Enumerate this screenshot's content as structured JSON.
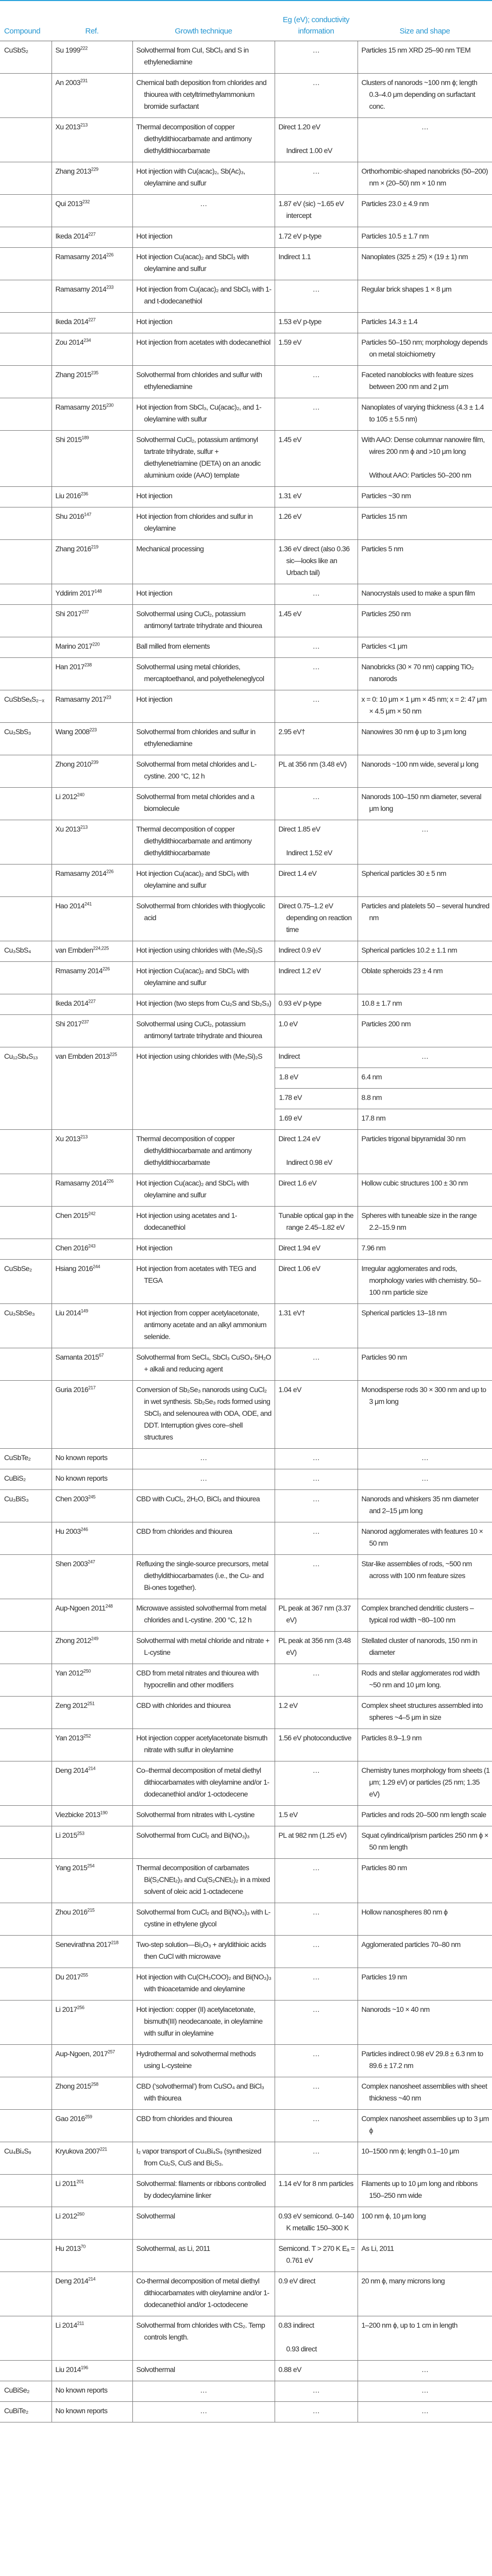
{
  "colors": {
    "header": "#2596d1",
    "rule": "#2aa3dc"
  },
  "table": {
    "headers": [
      "Compound",
      "Ref.",
      "Growth technique",
      "Eg (eV); conductivity information",
      "Size and shape"
    ],
    "rows": [
      {
        "c": "CuSbS₂",
        "r": "Su 1999",
        "s": "222",
        "t": "Solvothermal from CuI, SbCl₃ and S in ethylenediamine",
        "e": "…",
        "z": "Particles 15 nm XRD 25–90 nm TEM"
      },
      {
        "c": "",
        "r": "An 2003",
        "s": "231",
        "t": "Chemical bath deposition from chlorides and thiourea with cetyltrimethylammonium bromide surfactant",
        "e": "…",
        "z": "Clusters of nanorods ~100 nm ϕ; length 0.3–4.0 μm depending on surfactant conc."
      },
      {
        "c": "",
        "r": "Xu 2013",
        "s": "213",
        "t": "Thermal decomposition of copper diethyldithiocarbamate and antimony diethyldithiocarbamate",
        "e": "Direct 1.20 eV\n\nIndirect 1.00 eV",
        "z": "…"
      },
      {
        "c": "",
        "r": "Zhang 2013",
        "s": "229",
        "t": "Hot injection with Cu(acac)₂, Sb(Ac)₃, oleylamine and sulfur",
        "e": "…",
        "z": "Orthorhombic-shaped nanobricks (50–200) nm × (20–50) nm × 10 nm"
      },
      {
        "c": "",
        "r": "Qui 2013",
        "s": "232",
        "t": "…",
        "e": "1.87 eV (sic) ~1.65 eV intercept",
        "z": "Particles 23.0 ± 4.9 nm"
      },
      {
        "c": "",
        "r": "Ikeda 2014",
        "s": "227",
        "t": "Hot injection",
        "e": "1.72 eV p-type",
        "z": "Particles 10.5 ± 1.7 nm"
      },
      {
        "c": "",
        "r": "Ramasamy 2014",
        "s": "226",
        "t": "Hot injection Cu(acac)₂ and SbCl₃ with oleylamine and sulfur",
        "e": "Indirect 1.1",
        "z": "Nanoplates (325 ± 25) × (19 ± 1) nm"
      },
      {
        "c": "",
        "r": "Ramasamy 2014",
        "s": "233",
        "t": "Hot injection from Cu(acac)₂ and SbCl₃ with 1- and t-dodecanethiol",
        "e": "…",
        "z": "Regular brick shapes 1 × 8 μm"
      },
      {
        "c": "",
        "r": "Ikeda 2014",
        "s": "227",
        "t": "Hot injection",
        "e": "1.53 eV p-type",
        "z": "Particles 14.3 ± 1.4"
      },
      {
        "c": "",
        "r": "Zou 2014",
        "s": "234",
        "t": "Hot injection from acetates with dodecanethiol",
        "e": "1.59 eV",
        "z": "Particles 50–150 nm; morphology depends on metal stoichiometry"
      },
      {
        "c": "",
        "r": "Zhang 2015",
        "s": "235",
        "t": "Solvothermal from chlorides and sulfur with ethylenediamine",
        "e": "…",
        "z": "Faceted nanoblocks with feature sizes between 200 nm and 2 μm"
      },
      {
        "c": "",
        "r": "Ramasamy 2015",
        "s": "230",
        "t": "Hot injection from SbCl₃, Cu(acac)₂, and 1-oleylamine with sulfur",
        "e": "…",
        "z": "Nanoplates of varying thickness (4.3 ± 1.4 to 105 ± 5.5 nm)"
      },
      {
        "c": "",
        "r": "Shi 2015",
        "s": "189",
        "t": "Solvothermal CuCl₂, potassium antimonyl tartrate trihydrate, sulfur + diethylenetriamine (DETA) on an anodic aluminium oxide (AAO) template",
        "e": "1.45 eV",
        "z": "With AAO: Dense columnar nanowire film, wires 200 nm ϕ and >10 μm long\n\nWithout AAO: Particles 50–200 nm"
      },
      {
        "c": "",
        "r": "Liu 2016",
        "s": "236",
        "t": "Hot injection",
        "e": "1.31 eV",
        "z": "Particles ~30 nm"
      },
      {
        "c": "",
        "r": "Shu 2016",
        "s": "147",
        "t": "Hot injection from chlorides and sulfur in oleylamine",
        "e": "1.26 eV",
        "z": "Particles 15 nm"
      },
      {
        "c": "",
        "r": "Zhang 2016",
        "s": "219",
        "t": "Mechanical processing",
        "e": "1.36 eV direct (also 0.36 sic—looks like an Urbach tail)",
        "z": "Particles 5 nm"
      },
      {
        "c": "",
        "r": "Yddirim 2017",
        "s": "148",
        "t": "Hot injection",
        "e": "…",
        "z": "Nanocrystals used to make a spun film"
      },
      {
        "c": "",
        "r": "Shi 2017",
        "s": "237",
        "t": "Solvothermal using CuCl₂, potassium antimonyl tartrate trihydrate and thiourea",
        "e": "1.45 eV",
        "z": "Particles 250 nm"
      },
      {
        "c": "",
        "r": "Marino 2017",
        "s": "220",
        "t": "Ball milled from elements",
        "e": "…",
        "z": "Particles <1 μm"
      },
      {
        "c": "",
        "r": "Han 2017",
        "s": "238",
        "t": "Solvothermal using metal chlorides, mercaptoethanol, and polyetheleneglycol",
        "e": "…",
        "z": "Nanobricks (30 × 70 nm) capping TiO₂ nanorods"
      },
      {
        "c": "CuSbSeₓS₂₋ₓ",
        "r": "Ramasamy 2017",
        "s": "23",
        "t": "Hot injection",
        "e": "…",
        "z": "x = 0: 10 μm × 1 μm × 45 nm; x = 2: 47 μm × 4.5 μm × 50 nm"
      },
      {
        "c": "Cu₃SbS₃",
        "r": "Wang 2008",
        "s": "223",
        "t": "Solvothermal from chlorides and sulfur in ethylenediamine",
        "e": "2.95 eV†",
        "z": "Nanowires 30 nm ϕ up to 3 μm long"
      },
      {
        "c": "",
        "r": "Zhong 2010",
        "s": "239",
        "t": "Solvothermal from metal chlorides and L-cystine. 200 °C, 12 h",
        "e": "PL at 356 nm (3.48 eV)",
        "z": "Nanorods ~100 nm wide, several μ long"
      },
      {
        "c": "",
        "r": "Li 2012",
        "s": "240",
        "t": "Solvothermal from metal chlorides and a biomolecule",
        "e": "…",
        "z": "Nanorods 100–150 nm diameter, several μm long"
      },
      {
        "c": "",
        "r": "Xu 2013",
        "s": "213",
        "t": "Thermal decomposition of copper diethyldithiocarbamate and antimony diethyldithiocarbamate",
        "e": "Direct 1.85 eV\n\nIndirect 1.52 eV",
        "z": "…"
      },
      {
        "c": "",
        "r": "Ramasamy 2014",
        "s": "226",
        "t": "Hot injection Cu(acac)₂ and SbCl₃ with oleylamine and sulfur",
        "e": "Direct 1.4 eV",
        "z": "Spherical particles 30 ± 5 nm"
      },
      {
        "c": "",
        "r": "Hao 2014",
        "s": "241",
        "t": "Solvothermal from chlorides with thioglycolic acid",
        "e": "Direct 0.75–1.2 eV depending on reaction time",
        "z": "Particles and platelets 50 – several hundred nm"
      },
      {
        "c": "Cu₃SbS₄",
        "r": "van Embden",
        "s": "224,225",
        "t": "Hot injection using chlorides with (Me₃Si)₂S",
        "e": "Indirect 0.9 eV",
        "z": "Spherical particles 10.2 ± 1.1 nm"
      },
      {
        "c": "",
        "r": "Rmasamy 2014",
        "s": "226",
        "t": "Hot injection Cu(acac)₂ and SbCl₃ with oleylamine and sulfur",
        "e": "Indirect 1.2 eV",
        "z": "Oblate spheroids 23 ± 4 nm"
      },
      {
        "c": "",
        "r": "Ikeda 2014",
        "s": "227",
        "t": "Hot injection (two steps from Cu₂S and Sb₂S₃)",
        "e": "0.93 eV p-type",
        "z": "10.8 ± 1.7 nm"
      },
      {
        "c": "",
        "r": "Shi 2017",
        "s": "237",
        "t": "Solvothermal using CuCl₂, potassium antimonyl tartrate trihydrate and thiourea",
        "e": "1.0 eV",
        "z": "Particles 200 nm"
      },
      {
        "c": "Cu₁₂Sb₄S₁₃",
        "r": "van Embden 2013",
        "s": "225",
        "t": "Hot injection using chlorides with (Me₃Si)₂S",
        "sub": [
          [
            "Indirect",
            "…"
          ],
          [
            "1.8 eV",
            "6.4 nm"
          ],
          [
            "1.78 eV",
            "8.8 nm"
          ],
          [
            "1.69 eV",
            "17.8 nm"
          ]
        ]
      },
      {
        "c": "",
        "r": "Xu 2013",
        "s": "213",
        "t": "Thermal decomposition of copper diethyldithiocarbamate and antimony diethyldithiocarbamate",
        "e": "Direct 1.24 eV\n\nIndirect 0.98 eV",
        "z": "Particles trigonal bipyramidal 30 nm"
      },
      {
        "c": "",
        "r": "Ramasamy 2014",
        "s": "226",
        "t": "Hot injection Cu(acac)₂ and SbCl₃ with oleylamine and sulfur",
        "e": "Direct 1.6 eV",
        "z": "Hollow cubic structures 100 ± 30 nm"
      },
      {
        "c": "",
        "r": "Chen 2015",
        "s": "242",
        "t": "Hot injection using acetates and 1-dodecanethiol",
        "e": "Tunable optical gap in the range 2.45–1.82 eV",
        "z": "Spheres with tuneable size in the range 2.2–15.9 nm"
      },
      {
        "c": "",
        "r": "Chen 2016",
        "s": "243",
        "t": "Hot injection",
        "e": "Direct 1.94 eV",
        "z": "7.96 nm"
      },
      {
        "c": "CuSbSe₂",
        "r": "Hsiang 2016",
        "s": "244",
        "t": "Hot injection from acetates with TEG and TEGA",
        "e": "Direct 1.06 eV",
        "z": "Irregular agglomerates and rods, morphology varies with chemistry. 50–100 nm particle size"
      },
      {
        "c": "Cu₃SbSe₃",
        "r": "Liu 2014",
        "s": "149",
        "t": "Hot injection from copper acetylacetonate, antimony acetate and an alkyl ammonium selenide.",
        "e": "1.31 eV†",
        "z": "Spherical particles 13–18 nm"
      },
      {
        "c": "",
        "r": "Samanta 2015",
        "s": "67",
        "t": "Solvothermal from SeCl₄, SbCl₃ CuSO₄·5H₂O + alkali and reducing agent",
        "e": "…",
        "z": "Particles 90 nm"
      },
      {
        "c": "",
        "r": "Guria 2016",
        "s": "217",
        "t": "Conversion of Sb₂Se₃ nanorods using CuCl₂ in wet synthesis. Sb₂Se₃ rods formed using SbCl₃ and selenourea with ODA, ODE, and DDT. Interruption gives core–shell structures",
        "e": "1.04 eV",
        "z": "Monodisperse rods 30 × 300 nm and up to 3 μm long"
      },
      {
        "c": "CuSbTe₂",
        "r": "No known reports",
        "s": "",
        "t": "…",
        "e": "…",
        "z": "…"
      },
      {
        "c": "CuBiS₂",
        "r": "No known reports",
        "s": "",
        "t": "…",
        "e": "…",
        "z": "…"
      },
      {
        "c": "Cu₃BiS₃",
        "r": "Chen 2003",
        "s": "245",
        "t": "CBD with CuCl₂, 2H₂O, BiCl₃ and thiourea",
        "e": "…",
        "z": "Nanorods and whiskers 35 nm diameter and 2–15 μm long"
      },
      {
        "c": "",
        "r": "Hu 2003",
        "s": "246",
        "t": "CBD from chlorides and thiourea",
        "e": "…",
        "z": "Nanorod agglomerates with features 10 × 50 nm"
      },
      {
        "c": "",
        "r": "Shen 2003",
        "s": "247",
        "t": "Refluxing the single-source precursors, metal diethyldithiocarbamates (i.e., the Cu- and Bi-ones together).",
        "e": "…",
        "z": "Star-like assemblies of rods, ~500 nm across with 100 nm feature sizes"
      },
      {
        "c": "",
        "r": "Aup-Ngoen 2011",
        "s": "248",
        "t": "Microwave assisted solvothermal from metal chlorides and L-cystine. 200 °C, 12 h",
        "e": "PL peak at 367 nm (3.37 eV)",
        "z": "Complex branched dendritic clusters – typical rod width ~80–100 nm"
      },
      {
        "c": "",
        "r": "Zhong 2012",
        "s": "249",
        "t": "Solvothermal with metal chloride and nitrate + L-cystine",
        "e": "PL peak at 356 nm (3.48 eV)",
        "z": "Stellated cluster of nanorods, 150 nm in diameter"
      },
      {
        "c": "",
        "r": "Yan 2012",
        "s": "250",
        "t": "CBD from metal nitrates and thiourea with hypocrellin and other modifiers",
        "e": "…",
        "z": "Rods and stellar agglomerates rod width ~50 nm and 10 μm long."
      },
      {
        "c": "",
        "r": "Zeng 2012",
        "s": "251",
        "t": "CBD with chlorides and thiourea",
        "e": "1.2 eV",
        "z": "Complex sheet structures assembled into spheres ~4–5 μm in size"
      },
      {
        "c": "",
        "r": "Yan 2013",
        "s": "252",
        "t": "Hot injection copper acetylacetonate bismuth nitrate with sulfur in oleylamine",
        "e": "1.56 eV photoconductive",
        "z": "Particles 8.9–1.9 nm"
      },
      {
        "c": "",
        "r": "Deng 2014",
        "s": "214",
        "t": "Co–thermal decomposition of metal diethyl dithiocarbamates with oleylamine and/or 1-dodecanethiol and/or 1-octodecene",
        "e": "…",
        "z": "Chemistry tunes morphology from sheets (1 μm; 1.29 eV) or particles (25 nm; 1.35 eV)"
      },
      {
        "c": "",
        "r": "Viezbicke 2013",
        "s": "190",
        "t": "Solvothermal from nitrates with L-cystine",
        "e": "1.5 eV",
        "z": "Particles and rods 20–500 nm length scale"
      },
      {
        "c": "",
        "r": "Li 2015",
        "s": "253",
        "t": "Solvothermal from CuCl₂ and Bi(NO₃)₃",
        "e": "PL at 982 nm (1.25 eV)",
        "z": "Squat cylindrical/prism particles 250 nm ϕ × 50 nm length"
      },
      {
        "c": "",
        "r": "Yang 2015",
        "s": "254",
        "t": "Thermal decomposition of carbamates Bi(S₂CNEt₂)₃ and Cu(S₂CNEt₂)₂ in a mixed solvent of oleic acid 1-octadecene",
        "e": "…",
        "z": "Particles 80 nm"
      },
      {
        "c": "",
        "r": "Zhou 2016",
        "s": "215",
        "t": "Solvothermal from CuCl₂ and Bi(NO₃)₃ with L-cystine in ethylene glycol",
        "e": "…",
        "z": "Hollow nanospheres 80 nm ϕ"
      },
      {
        "c": "",
        "r": "Senevirathna 2017",
        "s": "218",
        "t": "Two-step solution—Bi₂O₃ + aryldithioic acids then CuCl with microwave",
        "e": "…",
        "z": "Agglomerated particles 70–80 nm"
      },
      {
        "c": "",
        "r": "Du 2017",
        "s": "255",
        "t": "Hot injection with Cu(CH₃COO)₂ and Bi(NO₃)₃ with thioacetamide and oleylamine",
        "e": "…",
        "z": "Particles 19 nm"
      },
      {
        "c": "",
        "r": "Li 2017",
        "s": "256",
        "t": "Hot injection: copper (II) acetylacetonate, bismuth(III) neodecanoate, in oleylamine with sulfur in oleylamine",
        "e": "…",
        "z": "Nanorods ~10 × 40 nm"
      },
      {
        "c": "",
        "r": "Aup-Ngoen, 2017",
        "s": "257",
        "t": "Hydrothermal and solvothermal methods using L-cysteine",
        "e": "…",
        "z": "Particles indirect 0.98 eV 29.8 ± 6.3 nm to 89.6 ± 17.2 nm"
      },
      {
        "c": "",
        "r": "Zhong 2015",
        "s": "258",
        "t": "CBD (‘solvothermal’) from CuSO₄ and BiCl₃ with thiourea",
        "e": "…",
        "z": "Complex nanosheet assemblies with sheet thickness ~40 nm"
      },
      {
        "c": "",
        "r": "Gao 2016",
        "s": "259",
        "t": "CBD from chlorides and thiourea",
        "e": "…",
        "z": "Complex nanosheet assemblies up to 3 μm ϕ"
      },
      {
        "c": "Cu₄Bi₄S₉",
        "r": "Kryukova 2007",
        "s": "221",
        "t": "I₂ vapor transport of Cu₄Bi₄S₉ (synthesized from Cu₂S, CuS and Bi₂S₃.",
        "e": "…",
        "z": "10–1500 nm ϕ; length 0.1–10 μm"
      },
      {
        "c": "",
        "r": "Li 2011",
        "s": "201",
        "t": "Solvothermal: filaments or ribbons controlled by dodecylamine linker",
        "e": "1.14 eV for 8 nm particles",
        "z": "Filaments up to 10 μm long and ribbons 150–250 nm wide"
      },
      {
        "c": "",
        "r": "Li 2012",
        "s": "260",
        "t": "Solvothermal",
        "e": "0.93 eV semicond. 0–140 K metallic 150–300 K",
        "z": "100 nm ϕ, 10 μm long"
      },
      {
        "c": "",
        "r": "Hu 2013",
        "s": "70",
        "t": "Solvothermal, as Li, 2011",
        "e": "Semicond. T > 270 K Eₐ = 0.761 eV",
        "z": "As Li, 2011"
      },
      {
        "c": "",
        "r": "Deng 2014",
        "s": "214",
        "t": "Co-thermal decomposition of metal diethyl dithiocarbamates with oleylamine and/or 1-dodecanethiol and/or 1-octodecene",
        "e": "0.9 eV direct",
        "z": "20 nm ϕ, many microns long"
      },
      {
        "c": "",
        "r": "Li 2014",
        "s": "211",
        "t": "Solvothermal from chlorides with CS₂. Temp controls length.",
        "e": "0.83 indirect\n\n0.93 direct",
        "z": "1–200 nm ϕ, up to 1 cm in length"
      },
      {
        "c": "",
        "r": "Liu 2014",
        "s": "196",
        "t": "Solvothermal",
        "e": "0.88 eV",
        "z": "…"
      },
      {
        "c": "CuBiSe₂",
        "r": "No known reports",
        "s": "",
        "t": "…",
        "e": "…",
        "z": "…"
      },
      {
        "c": "CuBiTe₂",
        "r": "No known reports",
        "s": "",
        "t": "…",
        "e": "…",
        "z": "…"
      }
    ]
  }
}
